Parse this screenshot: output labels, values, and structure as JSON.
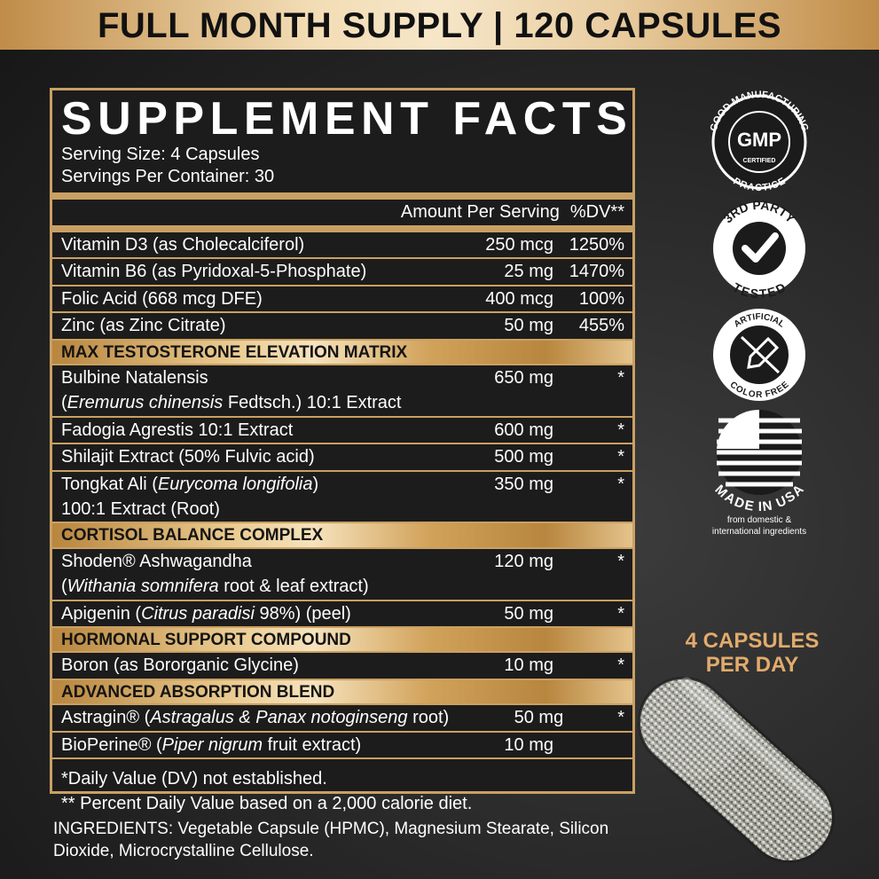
{
  "banner": "FULL MONTH SUPPLY | 120 CAPSULES",
  "facts": {
    "title": "SUPPLEMENT FACTS",
    "serving_size": "Serving Size: 4 Capsules",
    "servings_per_container": "Servings Per Container: 30",
    "header_amount": "Amount Per Serving",
    "header_dv": "%DV**",
    "rows": [
      {
        "lines": [
          [
            "Vitamin D3 (as Cholecalciferol)"
          ]
        ],
        "amount": "250 mcg",
        "dv": "1250%"
      },
      {
        "lines": [
          [
            "Vitamin B6 (as Pyridoxal-5-Phosphate)"
          ]
        ],
        "amount": "25 mg",
        "dv": "1470%"
      },
      {
        "lines": [
          [
            "Folic Acid (668 mcg DFE)"
          ]
        ],
        "amount": "400 mcg",
        "dv": "100%"
      },
      {
        "lines": [
          [
            "Zinc (as Zinc Citrate)"
          ]
        ],
        "amount": "50 mg",
        "dv": "455%"
      },
      {
        "section": "MAX TESTOSTERONE ELEVATION MATRIX"
      },
      {
        "lines": [
          [
            "Bulbine Natalensis"
          ],
          [
            "(",
            {
              "text": "Eremurus chinensis",
              "italic": true
            },
            " Fedtsch.) 10:1 Extract"
          ]
        ],
        "amount": "650 mg",
        "dv": "*"
      },
      {
        "lines": [
          [
            "Fadogia Agrestis 10:1 Extract"
          ]
        ],
        "amount": "600 mg",
        "dv": "*"
      },
      {
        "lines": [
          [
            "Shilajit Extract (50% Fulvic acid)"
          ]
        ],
        "amount": "500 mg",
        "dv": "*"
      },
      {
        "lines": [
          [
            "Tongkat Ali (",
            {
              "text": "Eurycoma longifolia",
              "italic": true
            },
            ")"
          ],
          [
            "100:1 Extract (Root)"
          ]
        ],
        "amount": "350 mg",
        "dv": "*"
      },
      {
        "section": "CORTISOL BALANCE COMPLEX"
      },
      {
        "lines": [
          [
            "Shoden® Ashwagandha"
          ],
          [
            "(",
            {
              "text": "Withania somnifera",
              "italic": true
            },
            " root & leaf extract)"
          ]
        ],
        "amount": "120 mg",
        "dv": "*"
      },
      {
        "lines": [
          [
            "Apigenin (",
            {
              "text": "Citrus paradisi",
              "italic": true
            },
            " 98%) (peel)"
          ]
        ],
        "amount": "50 mg",
        "dv": "*"
      },
      {
        "section": "HORMONAL SUPPORT COMPOUND"
      },
      {
        "lines": [
          [
            "Boron (as Bororganic Glycine)"
          ]
        ],
        "amount": "10 mg",
        "dv": "*"
      },
      {
        "section": "ADVANCED ABSORPTION BLEND"
      },
      {
        "lines": [
          [
            "Astragin® (",
            {
              "text": "Astragalus & Panax notoginseng",
              "italic": true
            },
            " root)"
          ]
        ],
        "amount": "50 mg",
        "dv": "*"
      },
      {
        "lines": [
          [
            "BioPerine® (",
            {
              "text": "Piper nigrum",
              "italic": true
            },
            " fruit extract)"
          ]
        ],
        "amount": "10 mg"
      }
    ],
    "footnotes": [
      "*Daily Value (DV) not established.",
      "** Percent Daily Value based on a 2,000 calorie diet."
    ]
  },
  "badges": {
    "gmp": {
      "top": "GOOD MANUFACTURING",
      "center": "GMP",
      "sub": "CERTIFIED",
      "bottom": "PRACTICE"
    },
    "tested": {
      "top": "3RD PARTY",
      "bottom": "TESTED"
    },
    "color_free": {
      "top": "ARTIFICIAL",
      "bottom": "COLOR FREE"
    },
    "usa": {
      "bottom": "MADE IN USA",
      "notes": [
        "from domestic &",
        "international ingredients"
      ]
    }
  },
  "dosage": [
    "4 CAPSULES",
    "PER DAY"
  ],
  "ingredients": "INGREDIENTS: Vegetable Capsule (HPMC), Magnesium Stearate, Silicon Dioxide, Microcrystalline Cellulose."
}
